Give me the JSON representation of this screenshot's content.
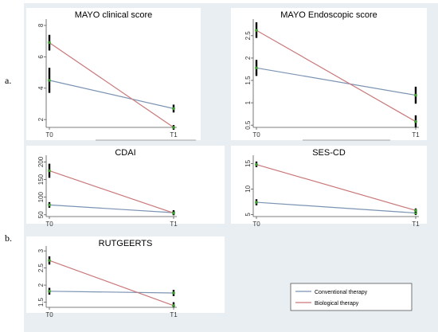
{
  "section_labels": [
    "a.",
    "b."
  ],
  "colors": {
    "conventional": "#7b93b3",
    "biological": "#c9787a",
    "ci": "#000000",
    "point": "#3c9a2e",
    "background": "#e8eef2",
    "panel": "#ffffff"
  },
  "chart_data": [
    {
      "type": "line",
      "title": "MAYO clinical score",
      "categories": [
        "T0",
        "T1"
      ],
      "ylim": [
        1.5,
        8.2
      ],
      "yticks": [
        "2",
        "4",
        "6",
        "8"
      ],
      "series": [
        {
          "name": "Conventional therapy",
          "values": [
            4.5,
            2.7
          ],
          "ci": [
            [
              3.7,
              5.3
            ],
            [
              2.45,
              2.95
            ]
          ]
        },
        {
          "name": "Biological therapy",
          "values": [
            6.9,
            1.5
          ],
          "ci": [
            [
              6.4,
              7.4
            ],
            [
              1.35,
              1.65
            ]
          ]
        }
      ]
    },
    {
      "type": "line",
      "title": "MAYO Endoscopic score",
      "categories": [
        "T0",
        "T1"
      ],
      "ylim": [
        0.45,
        2.8
      ],
      "yticks": [
        "0.5",
        "1",
        "1.5",
        "2",
        "2.5"
      ],
      "series": [
        {
          "name": "Conventional therapy",
          "values": [
            1.78,
            1.17
          ],
          "ci": [
            [
              1.6,
              1.96
            ],
            [
              0.98,
              1.36
            ]
          ]
        },
        {
          "name": "Biological therapy",
          "values": [
            2.62,
            0.58
          ],
          "ci": [
            [
              2.45,
              2.8
            ],
            [
              0.45,
              0.72
            ]
          ]
        }
      ]
    },
    {
      "type": "line",
      "title": "CDAI",
      "categories": [
        "T0",
        "T1"
      ],
      "ylim": [
        45,
        210
      ],
      "yticks": [
        "50",
        "100",
        "150",
        "200"
      ],
      "series": [
        {
          "name": "Conventional therapy",
          "values": [
            78,
            56
          ],
          "ci": [
            [
              70,
              86
            ],
            [
              49,
              63
            ]
          ]
        },
        {
          "name": "Biological therapy",
          "values": [
            175,
            55
          ],
          "ci": [
            [
              155,
              195
            ],
            [
              49,
              61
            ]
          ]
        }
      ]
    },
    {
      "type": "line",
      "title": "SES-CD",
      "categories": [
        "T0",
        "T1"
      ],
      "ylim": [
        4.6,
        16
      ],
      "yticks": [
        "5",
        "10",
        "15"
      ],
      "series": [
        {
          "name": "Conventional therapy",
          "values": [
            7.4,
            5.3
          ],
          "ci": [
            [
              6.8,
              8.0
            ],
            [
              4.9,
              5.7
            ]
          ]
        },
        {
          "name": "Biological therapy",
          "values": [
            14.8,
            5.8
          ],
          "ci": [
            [
              14.3,
              15.4
            ],
            [
              5.4,
              6.2
            ]
          ]
        }
      ]
    },
    {
      "type": "line",
      "title": "RUTGEERTS",
      "categories": [
        "T0",
        "T1"
      ],
      "ylim": [
        1.35,
        3.05
      ],
      "yticks": [
        "1.5",
        "2",
        "2.5",
        "3"
      ],
      "series": [
        {
          "name": "Conventional therapy",
          "values": [
            1.82,
            1.77
          ],
          "ci": [
            [
              1.72,
              1.92
            ],
            [
              1.68,
              1.86
            ]
          ]
        },
        {
          "name": "Biological therapy",
          "values": [
            2.72,
            1.4
          ],
          "ci": [
            [
              2.6,
              2.84
            ],
            [
              1.35,
              1.5
            ]
          ]
        }
      ]
    }
  ],
  "legend": {
    "items": [
      "Conventional therapy",
      "Biological therapy"
    ]
  }
}
